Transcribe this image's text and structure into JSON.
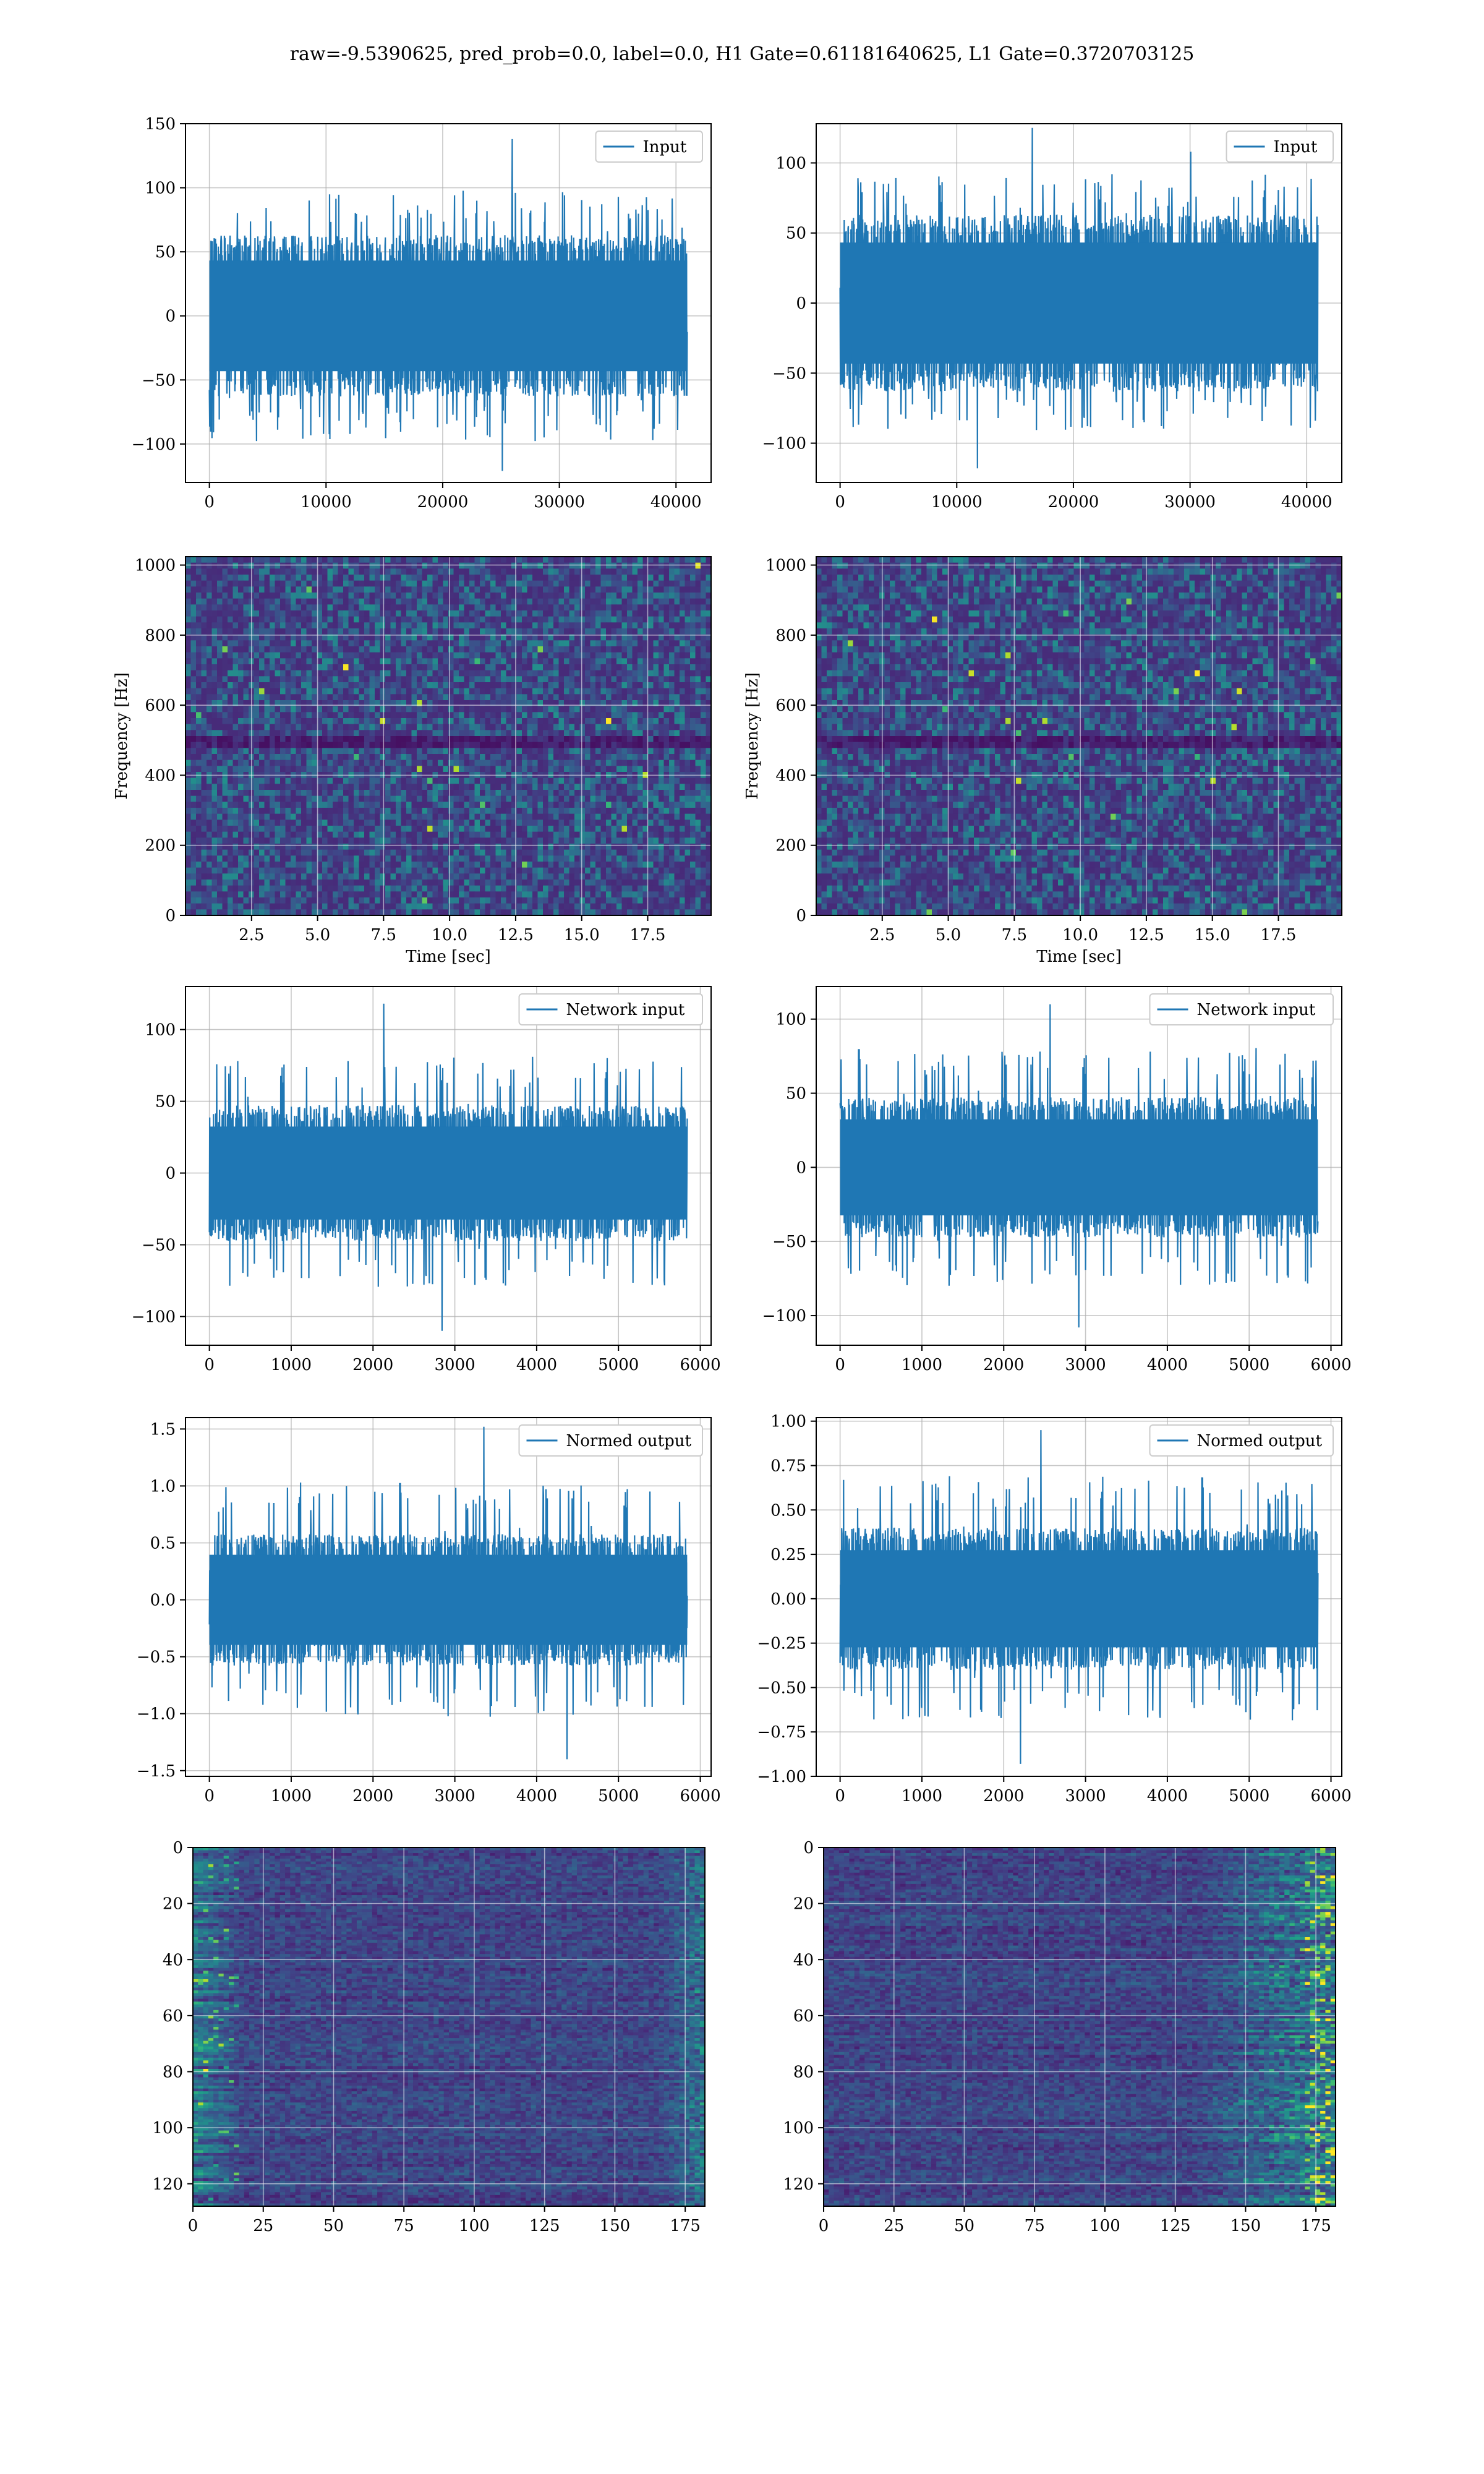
{
  "title": "raw=-9.5390625, pred_prob=0.0, label=0.0, H1 Gate=0.61181640625, L1 Gate=0.3720703125",
  "colors": {
    "line": "#1f77b4",
    "grid": "#b0b0b0",
    "viridis": [
      "#440154",
      "#482878",
      "#3e4989",
      "#31688e",
      "#26828e",
      "#1f9e89",
      "#35b779",
      "#6ece58",
      "#b5de2b",
      "#fde725"
    ]
  },
  "chart_data": [
    {
      "id": "input-h1",
      "type": "line",
      "legend": "Input",
      "legend_position": "upper right",
      "grid": true,
      "x_range": [
        0,
        40960
      ],
      "xlim": [
        -2048,
        43008
      ],
      "ylim": [
        -130,
        150
      ],
      "xticks": [
        0,
        10000,
        20000,
        30000,
        40000
      ],
      "yticks": [
        -100,
        -50,
        0,
        50,
        100,
        150
      ],
      "envelope": {
        "core": 60,
        "typical_peak": 85,
        "max": 138,
        "min": -121
      }
    },
    {
      "id": "input-l1",
      "type": "line",
      "legend": "Input",
      "legend_position": "upper right",
      "grid": true,
      "x_range": [
        0,
        40960
      ],
      "xlim": [
        -2048,
        43008
      ],
      "ylim": [
        -128,
        128
      ],
      "xticks": [
        0,
        10000,
        20000,
        30000,
        40000
      ],
      "yticks": [
        -100,
        -50,
        0,
        50,
        100
      ],
      "envelope": {
        "core": 60,
        "typical_peak": 80,
        "max": 125,
        "min": -118
      }
    },
    {
      "id": "spectrogram-h1",
      "type": "heatmap",
      "grid": true,
      "xlabel": "Time [sec]",
      "ylabel": "Frequency [Hz]",
      "xlim": [
        0,
        19.9
      ],
      "ylim": [
        0,
        1024
      ],
      "xticks": [
        2.5,
        5.0,
        7.5,
        10.0,
        12.5,
        15.0,
        17.5
      ],
      "yticks": [
        0,
        200,
        400,
        600,
        800,
        1000
      ],
      "dark_band_hz": [
        480,
        520
      ]
    },
    {
      "id": "spectrogram-l1",
      "type": "heatmap",
      "grid": true,
      "xlabel": "Time [sec]",
      "ylabel": "Frequency [Hz]",
      "xlim": [
        0,
        19.9
      ],
      "ylim": [
        0,
        1024
      ],
      "xticks": [
        2.5,
        5.0,
        7.5,
        10.0,
        12.5,
        15.0,
        17.5
      ],
      "yticks": [
        0,
        200,
        400,
        600,
        800,
        1000
      ],
      "dark_band_hz": [
        480,
        520
      ]
    },
    {
      "id": "network-input-h1",
      "type": "line",
      "legend": "Network input",
      "legend_position": "upper right",
      "grid": true,
      "x_range": [
        0,
        5840
      ],
      "xlim": [
        -292,
        6132
      ],
      "ylim": [
        -120,
        130
      ],
      "xticks": [
        0,
        1000,
        2000,
        3000,
        4000,
        5000,
        6000
      ],
      "yticks": [
        -100,
        -50,
        0,
        50,
        100
      ],
      "envelope": {
        "core": 45,
        "typical_peak": 70,
        "max": 118,
        "min": -110
      }
    },
    {
      "id": "network-input-l1",
      "type": "line",
      "legend": "Network input",
      "legend_position": "upper right",
      "grid": true,
      "x_range": [
        0,
        5840
      ],
      "xlim": [
        -292,
        6132
      ],
      "ylim": [
        -120,
        122
      ],
      "xticks": [
        0,
        1000,
        2000,
        3000,
        4000,
        5000,
        6000
      ],
      "yticks": [
        -100,
        -50,
        0,
        50,
        100
      ],
      "envelope": {
        "core": 45,
        "typical_peak": 70,
        "max": 110,
        "min": -108
      }
    },
    {
      "id": "normed-output-h1",
      "type": "line",
      "legend": "Normed output",
      "legend_position": "upper right",
      "grid": true,
      "x_range": [
        0,
        5840
      ],
      "xlim": [
        -292,
        6132
      ],
      "ylim": [
        -1.55,
        1.6
      ],
      "xticks": [
        0,
        1000,
        2000,
        3000,
        4000,
        5000,
        6000
      ],
      "yticks": [
        -1.5,
        -1.0,
        -0.5,
        0.0,
        0.5,
        1.0,
        1.5
      ],
      "envelope": {
        "core": 0.55,
        "typical_peak": 0.9,
        "max": 1.52,
        "min": -1.4
      }
    },
    {
      "id": "normed-output-l1",
      "type": "line",
      "legend": "Normed output",
      "legend_position": "upper right",
      "grid": true,
      "x_range": [
        0,
        5840
      ],
      "xlim": [
        -292,
        6132
      ],
      "ylim": [
        -1.0,
        1.02
      ],
      "xticks": [
        0,
        1000,
        2000,
        3000,
        4000,
        5000,
        6000
      ],
      "yticks": [
        -1.0,
        -0.75,
        -0.5,
        -0.25,
        0.0,
        0.25,
        0.5,
        0.75,
        1.0
      ],
      "envelope": {
        "core": 0.38,
        "typical_peak": 0.6,
        "max": 0.95,
        "min": -0.93
      }
    },
    {
      "id": "features-h1",
      "type": "heatmap",
      "grid": true,
      "xlim": [
        0,
        182
      ],
      "ylim": [
        128,
        0
      ],
      "xticks": [
        0,
        25,
        50,
        75,
        100,
        125,
        150,
        175
      ],
      "yticks": [
        0,
        20,
        40,
        60,
        80,
        100,
        120
      ],
      "bright_region": "left and right edges"
    },
    {
      "id": "features-l1",
      "type": "heatmap",
      "grid": true,
      "xlim": [
        0,
        182
      ],
      "ylim": [
        128,
        0
      ],
      "xticks": [
        0,
        25,
        50,
        75,
        100,
        125,
        150,
        175
      ],
      "yticks": [
        0,
        20,
        40,
        60,
        80,
        100,
        120
      ],
      "bright_region": "right edge"
    }
  ]
}
